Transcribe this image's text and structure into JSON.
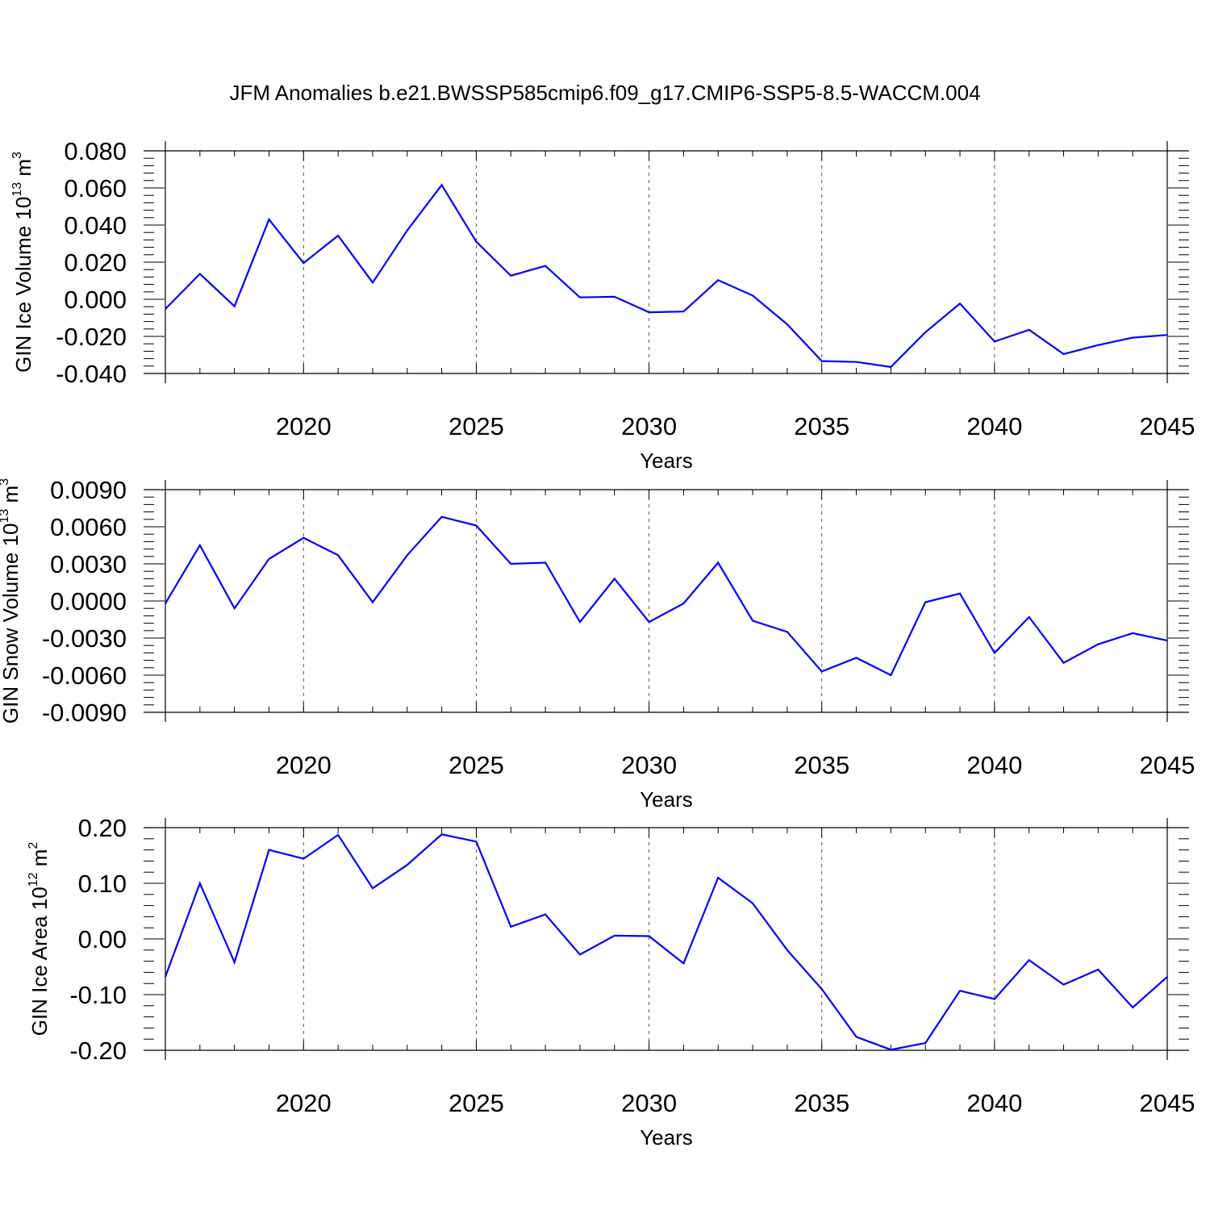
{
  "title": "JFM Anomalies b.e21.BWSSP585cmip6.f09_g17.CMIP6-SSP5-8.5-WACCM.004",
  "colors": {
    "line": "#0000ff",
    "axis": "#000000",
    "grid": "#555555",
    "background": "#ffffff"
  },
  "chart_data": [
    {
      "type": "line",
      "xlabel": "Years",
      "ylabel": {
        "main": "GIN Ice Volume 10",
        "exponent": "13",
        "unit": " m",
        "unit_exponent": "3"
      },
      "xlim": [
        2016,
        2045
      ],
      "ylim": [
        -0.04,
        0.08
      ],
      "x_ticks": [
        2020,
        2025,
        2030,
        2035,
        2040,
        2045
      ],
      "y_ticks": [
        -0.04,
        -0.02,
        0.0,
        0.02,
        0.04,
        0.06,
        0.08
      ],
      "y_tick_labels": [
        "-0.040",
        "-0.020",
        "0.000",
        "0.020",
        "0.040",
        "0.060",
        "0.080"
      ],
      "grid": "vertical dashed at major x ticks",
      "x": [
        2016,
        2017,
        2018,
        2019,
        2020,
        2021,
        2022,
        2023,
        2024,
        2025,
        2026,
        2027,
        2028,
        2029,
        2030,
        2031,
        2032,
        2033,
        2034,
        2035,
        2036,
        2037,
        2038,
        2039,
        2040,
        2041,
        2042,
        2043,
        2044,
        2045
      ],
      "values": [
        -0.0052,
        0.0137,
        -0.0038,
        0.043,
        0.0195,
        0.0343,
        0.009,
        0.0371,
        0.0616,
        0.031,
        0.0127,
        0.018,
        0.001,
        0.0014,
        -0.007,
        -0.0066,
        0.0103,
        0.002,
        -0.0135,
        -0.0333,
        -0.0338,
        -0.0365,
        -0.0178,
        -0.0023,
        -0.0228,
        -0.0165,
        -0.0295,
        -0.0247,
        -0.0207,
        -0.0192
      ]
    },
    {
      "type": "line",
      "xlabel": "Years",
      "ylabel": {
        "main": "GIN Snow Volume 10",
        "exponent": "13",
        "unit": " m",
        "unit_exponent": "3"
      },
      "xlim": [
        2016,
        2045
      ],
      "ylim": [
        -0.009,
        0.009
      ],
      "x_ticks": [
        2020,
        2025,
        2030,
        2035,
        2040,
        2045
      ],
      "y_ticks": [
        -0.009,
        -0.006,
        -0.003,
        0.0,
        0.003,
        0.006,
        0.009
      ],
      "y_tick_labels": [
        "-0.0090",
        "-0.0060",
        "-0.0030",
        "0.0000",
        "0.0030",
        "0.0060",
        "0.0090"
      ],
      "grid": "vertical dashed at major x ticks",
      "x": [
        2016,
        2017,
        2018,
        2019,
        2020,
        2021,
        2022,
        2023,
        2024,
        2025,
        2026,
        2027,
        2028,
        2029,
        2030,
        2031,
        2032,
        2033,
        2034,
        2035,
        2036,
        2037,
        2038,
        2039,
        2040,
        2041,
        2042,
        2043,
        2044,
        2045
      ],
      "values": [
        -0.0002,
        0.0045,
        -0.0006,
        0.0034,
        0.0051,
        0.0037,
        -0.0001,
        0.0037,
        0.0068,
        0.0061,
        0.003,
        0.0031,
        -0.0017,
        0.0018,
        -0.0017,
        -0.0002,
        0.0031,
        -0.0016,
        -0.0025,
        -0.0057,
        -0.0046,
        -0.006,
        -0.0001,
        0.0006,
        -0.0042,
        -0.0013,
        -0.005,
        -0.0035,
        -0.0026,
        -0.0032
      ]
    },
    {
      "type": "line",
      "xlabel": "Years",
      "ylabel": {
        "main": "GIN Ice Area 10",
        "exponent": "12",
        "unit": " m",
        "unit_exponent": "2"
      },
      "xlim": [
        2016,
        2045
      ],
      "ylim": [
        -0.2,
        0.2
      ],
      "x_ticks": [
        2020,
        2025,
        2030,
        2035,
        2040,
        2045
      ],
      "y_ticks": [
        -0.2,
        -0.1,
        0.0,
        0.1,
        0.2
      ],
      "y_tick_labels": [
        "-0.20",
        "-0.10",
        "0.00",
        "0.10",
        "0.20"
      ],
      "grid": "vertical dashed at major x ticks",
      "x": [
        2016,
        2017,
        2018,
        2019,
        2020,
        2021,
        2022,
        2023,
        2024,
        2025,
        2026,
        2027,
        2028,
        2029,
        2030,
        2031,
        2032,
        2033,
        2034,
        2035,
        2036,
        2037,
        2038,
        2039,
        2040,
        2041,
        2042,
        2043,
        2044,
        2045
      ],
      "values": [
        -0.068,
        0.1,
        -0.042,
        0.16,
        0.144,
        0.187,
        0.091,
        0.133,
        0.188,
        0.175,
        0.022,
        0.044,
        -0.028,
        0.006,
        0.005,
        -0.044,
        0.11,
        0.064,
        -0.02,
        -0.09,
        -0.176,
        -0.199,
        -0.187,
        -0.093,
        -0.108,
        -0.038,
        -0.082,
        -0.055,
        -0.123,
        -0.068
      ]
    }
  ]
}
